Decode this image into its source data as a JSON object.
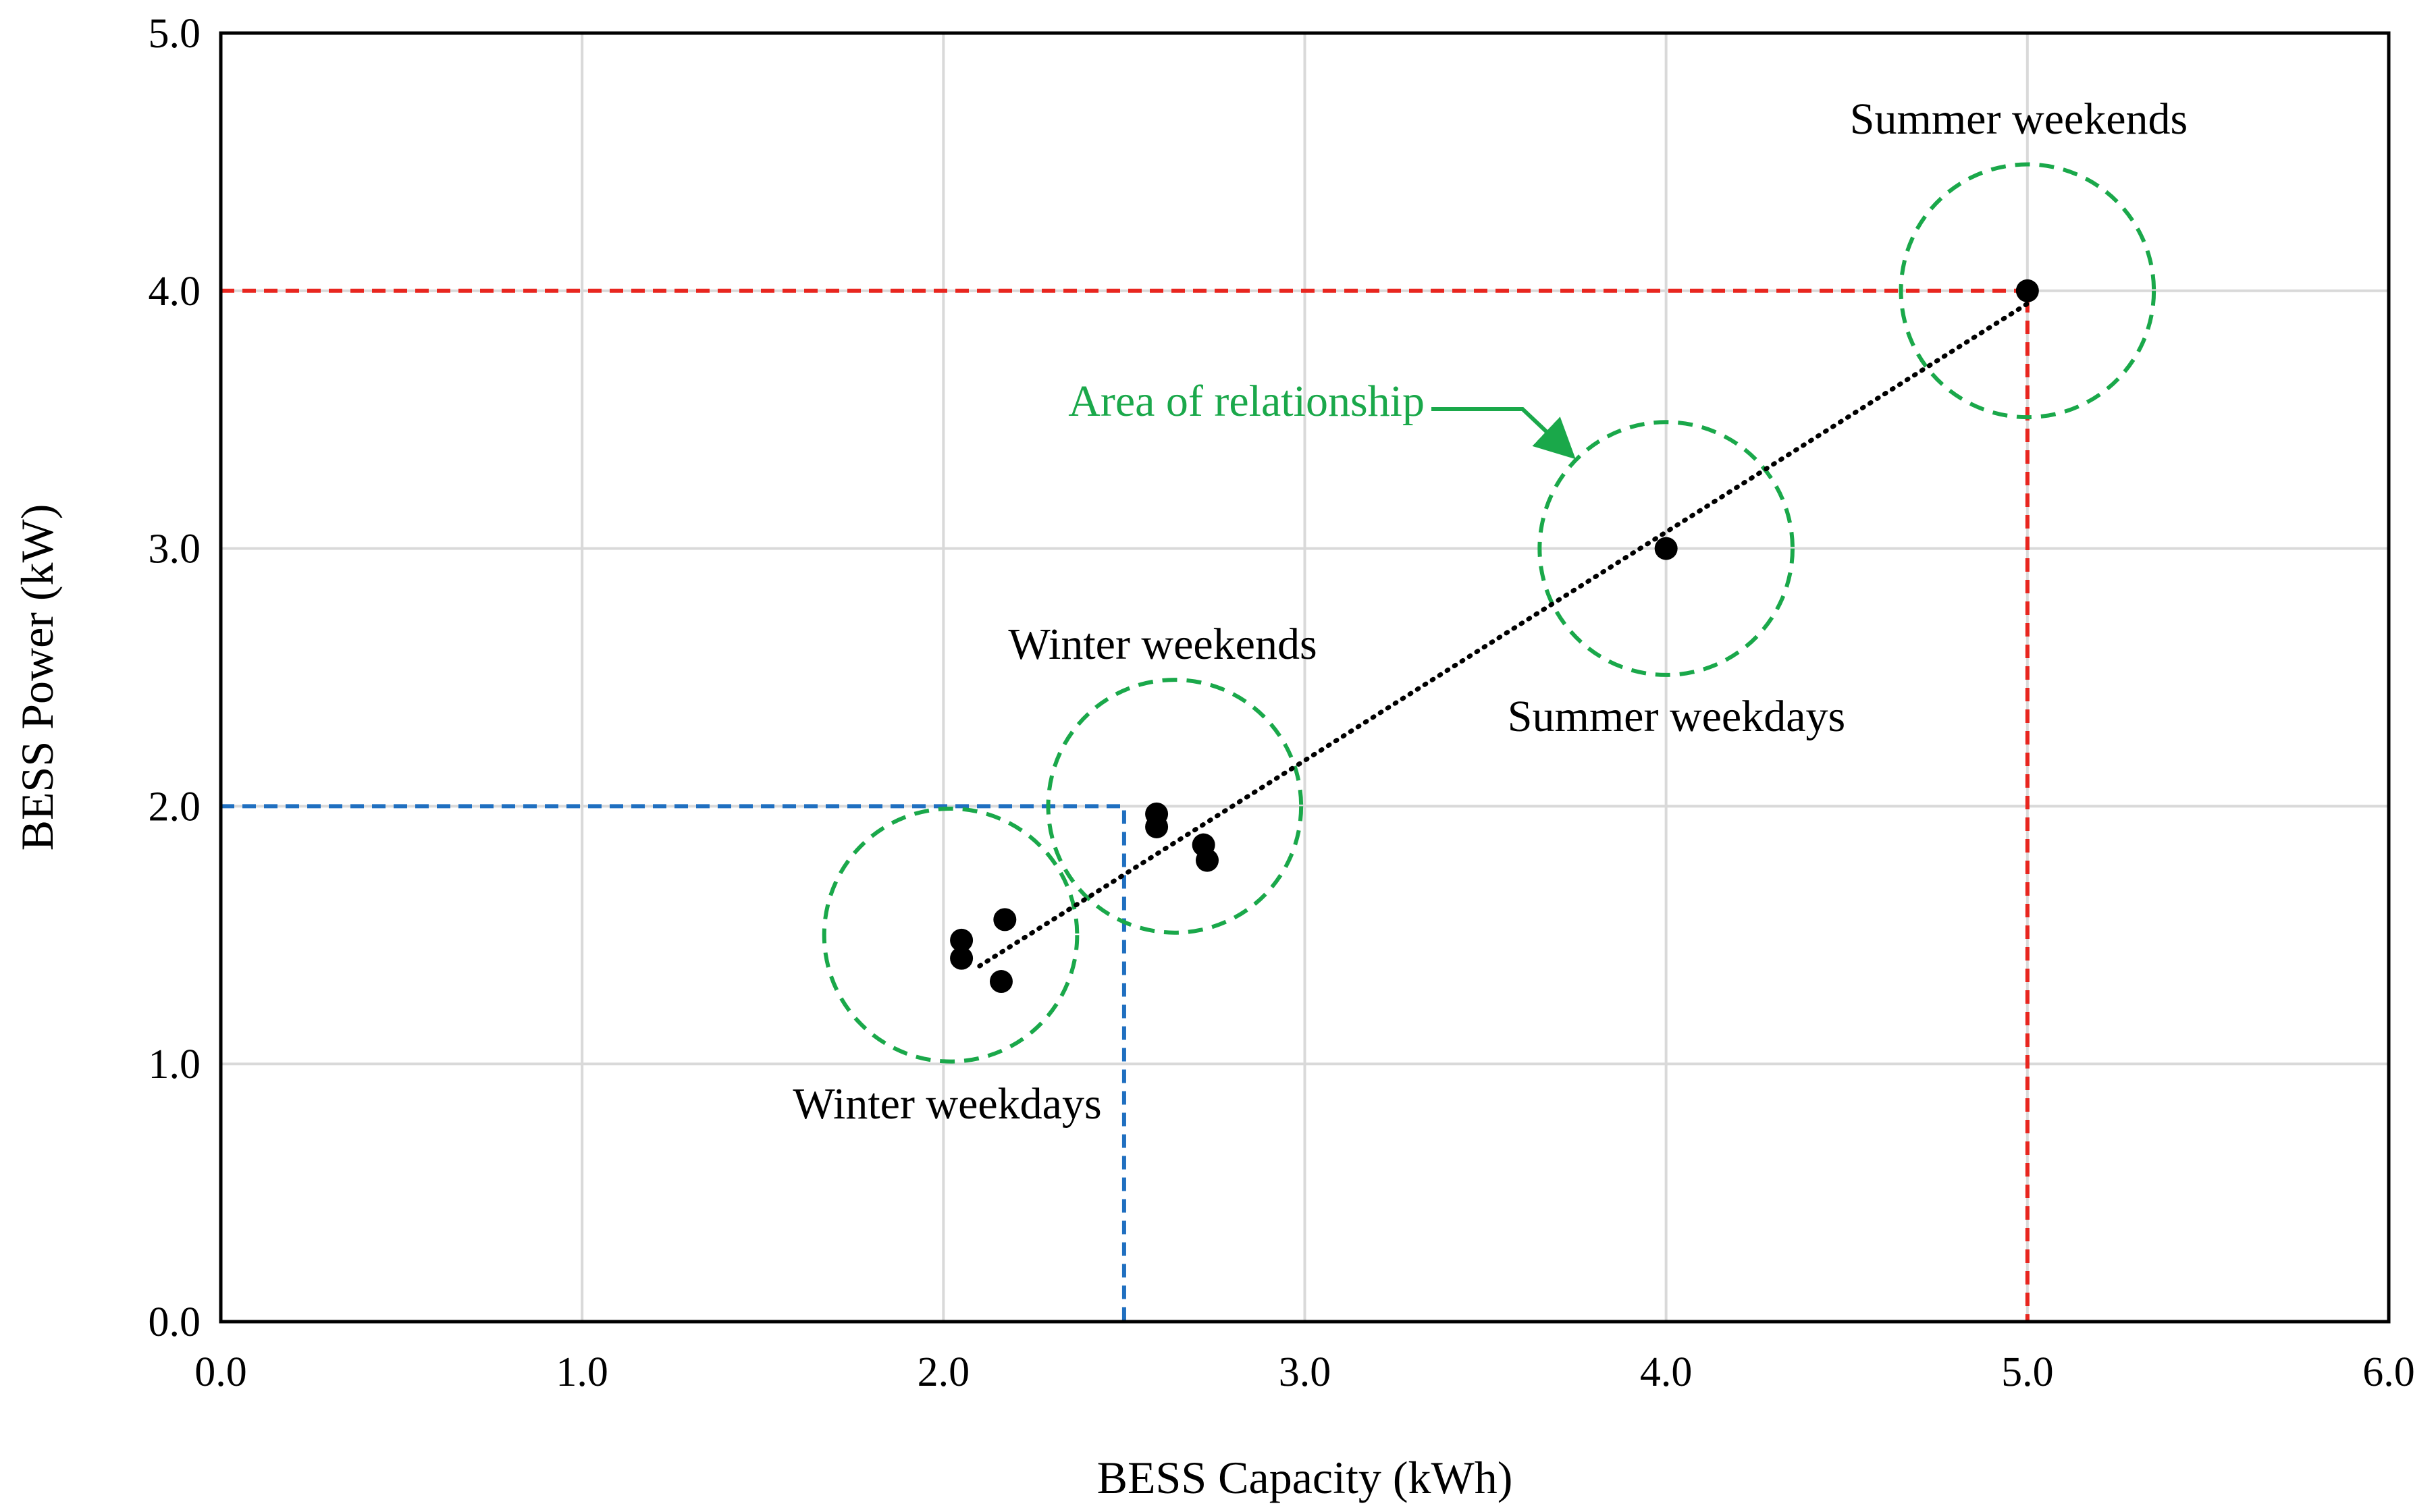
{
  "chart_data": {
    "type": "scatter",
    "title": "",
    "xlabel": "BESS Capacity (kWh)",
    "ylabel": "BESS Power (kW)",
    "xlim": [
      0,
      6
    ],
    "ylim": [
      0,
      5
    ],
    "grid": true,
    "x_ticks": [
      0,
      1,
      2,
      3,
      4,
      5,
      6
    ],
    "y_ticks": [
      0,
      1,
      2,
      3,
      4,
      5
    ],
    "x_tick_labels": [
      "0.0",
      "1.0",
      "2.0",
      "3.0",
      "4.0",
      "5.0",
      "6.0"
    ],
    "y_tick_labels": [
      "0.0",
      "1.0",
      "2.0",
      "3.0",
      "4.0",
      "5.0"
    ],
    "points": [
      {
        "x": 2.05,
        "y": 1.48
      },
      {
        "x": 2.05,
        "y": 1.41
      },
      {
        "x": 2.17,
        "y": 1.56
      },
      {
        "x": 2.16,
        "y": 1.32
      },
      {
        "x": 2.59,
        "y": 1.97
      },
      {
        "x": 2.59,
        "y": 1.92
      },
      {
        "x": 2.72,
        "y": 1.85
      },
      {
        "x": 2.73,
        "y": 1.79
      },
      {
        "x": 4.0,
        "y": 3.0
      },
      {
        "x": 5.0,
        "y": 4.0
      }
    ],
    "trendline": {
      "style": "dotted",
      "color": "#000000",
      "from": {
        "x": 2.1,
        "y": 1.38
      },
      "to": {
        "x": 5.0,
        "y": 3.95
      }
    },
    "reference_lines": [
      {
        "name": "blue-reference",
        "color": "#1f6fc0",
        "x": 2.5,
        "y": 2.0
      },
      {
        "name": "red-reference",
        "color": "#e8261f",
        "x": 5.0,
        "y": 4.0
      }
    ],
    "groups": [
      {
        "label": "Winter weekdays",
        "cx": 2.02,
        "cy": 1.5,
        "r": 0.35
      },
      {
        "label": "Winter weekends",
        "cx": 2.64,
        "cy": 2.0,
        "r": 0.35
      },
      {
        "label": "Summer weekdays",
        "cx": 4.0,
        "cy": 3.0,
        "r": 0.35
      },
      {
        "label": "Summer weekends",
        "cx": 5.0,
        "cy": 4.0,
        "r": 0.35
      }
    ],
    "annotations": [
      {
        "text": "Area of relationship",
        "color": "#1aa84a"
      }
    ],
    "colors": {
      "group_circle": "#1aa84a",
      "grid": "#d9d9d9",
      "axis": "#000000",
      "points": "#000000"
    }
  }
}
